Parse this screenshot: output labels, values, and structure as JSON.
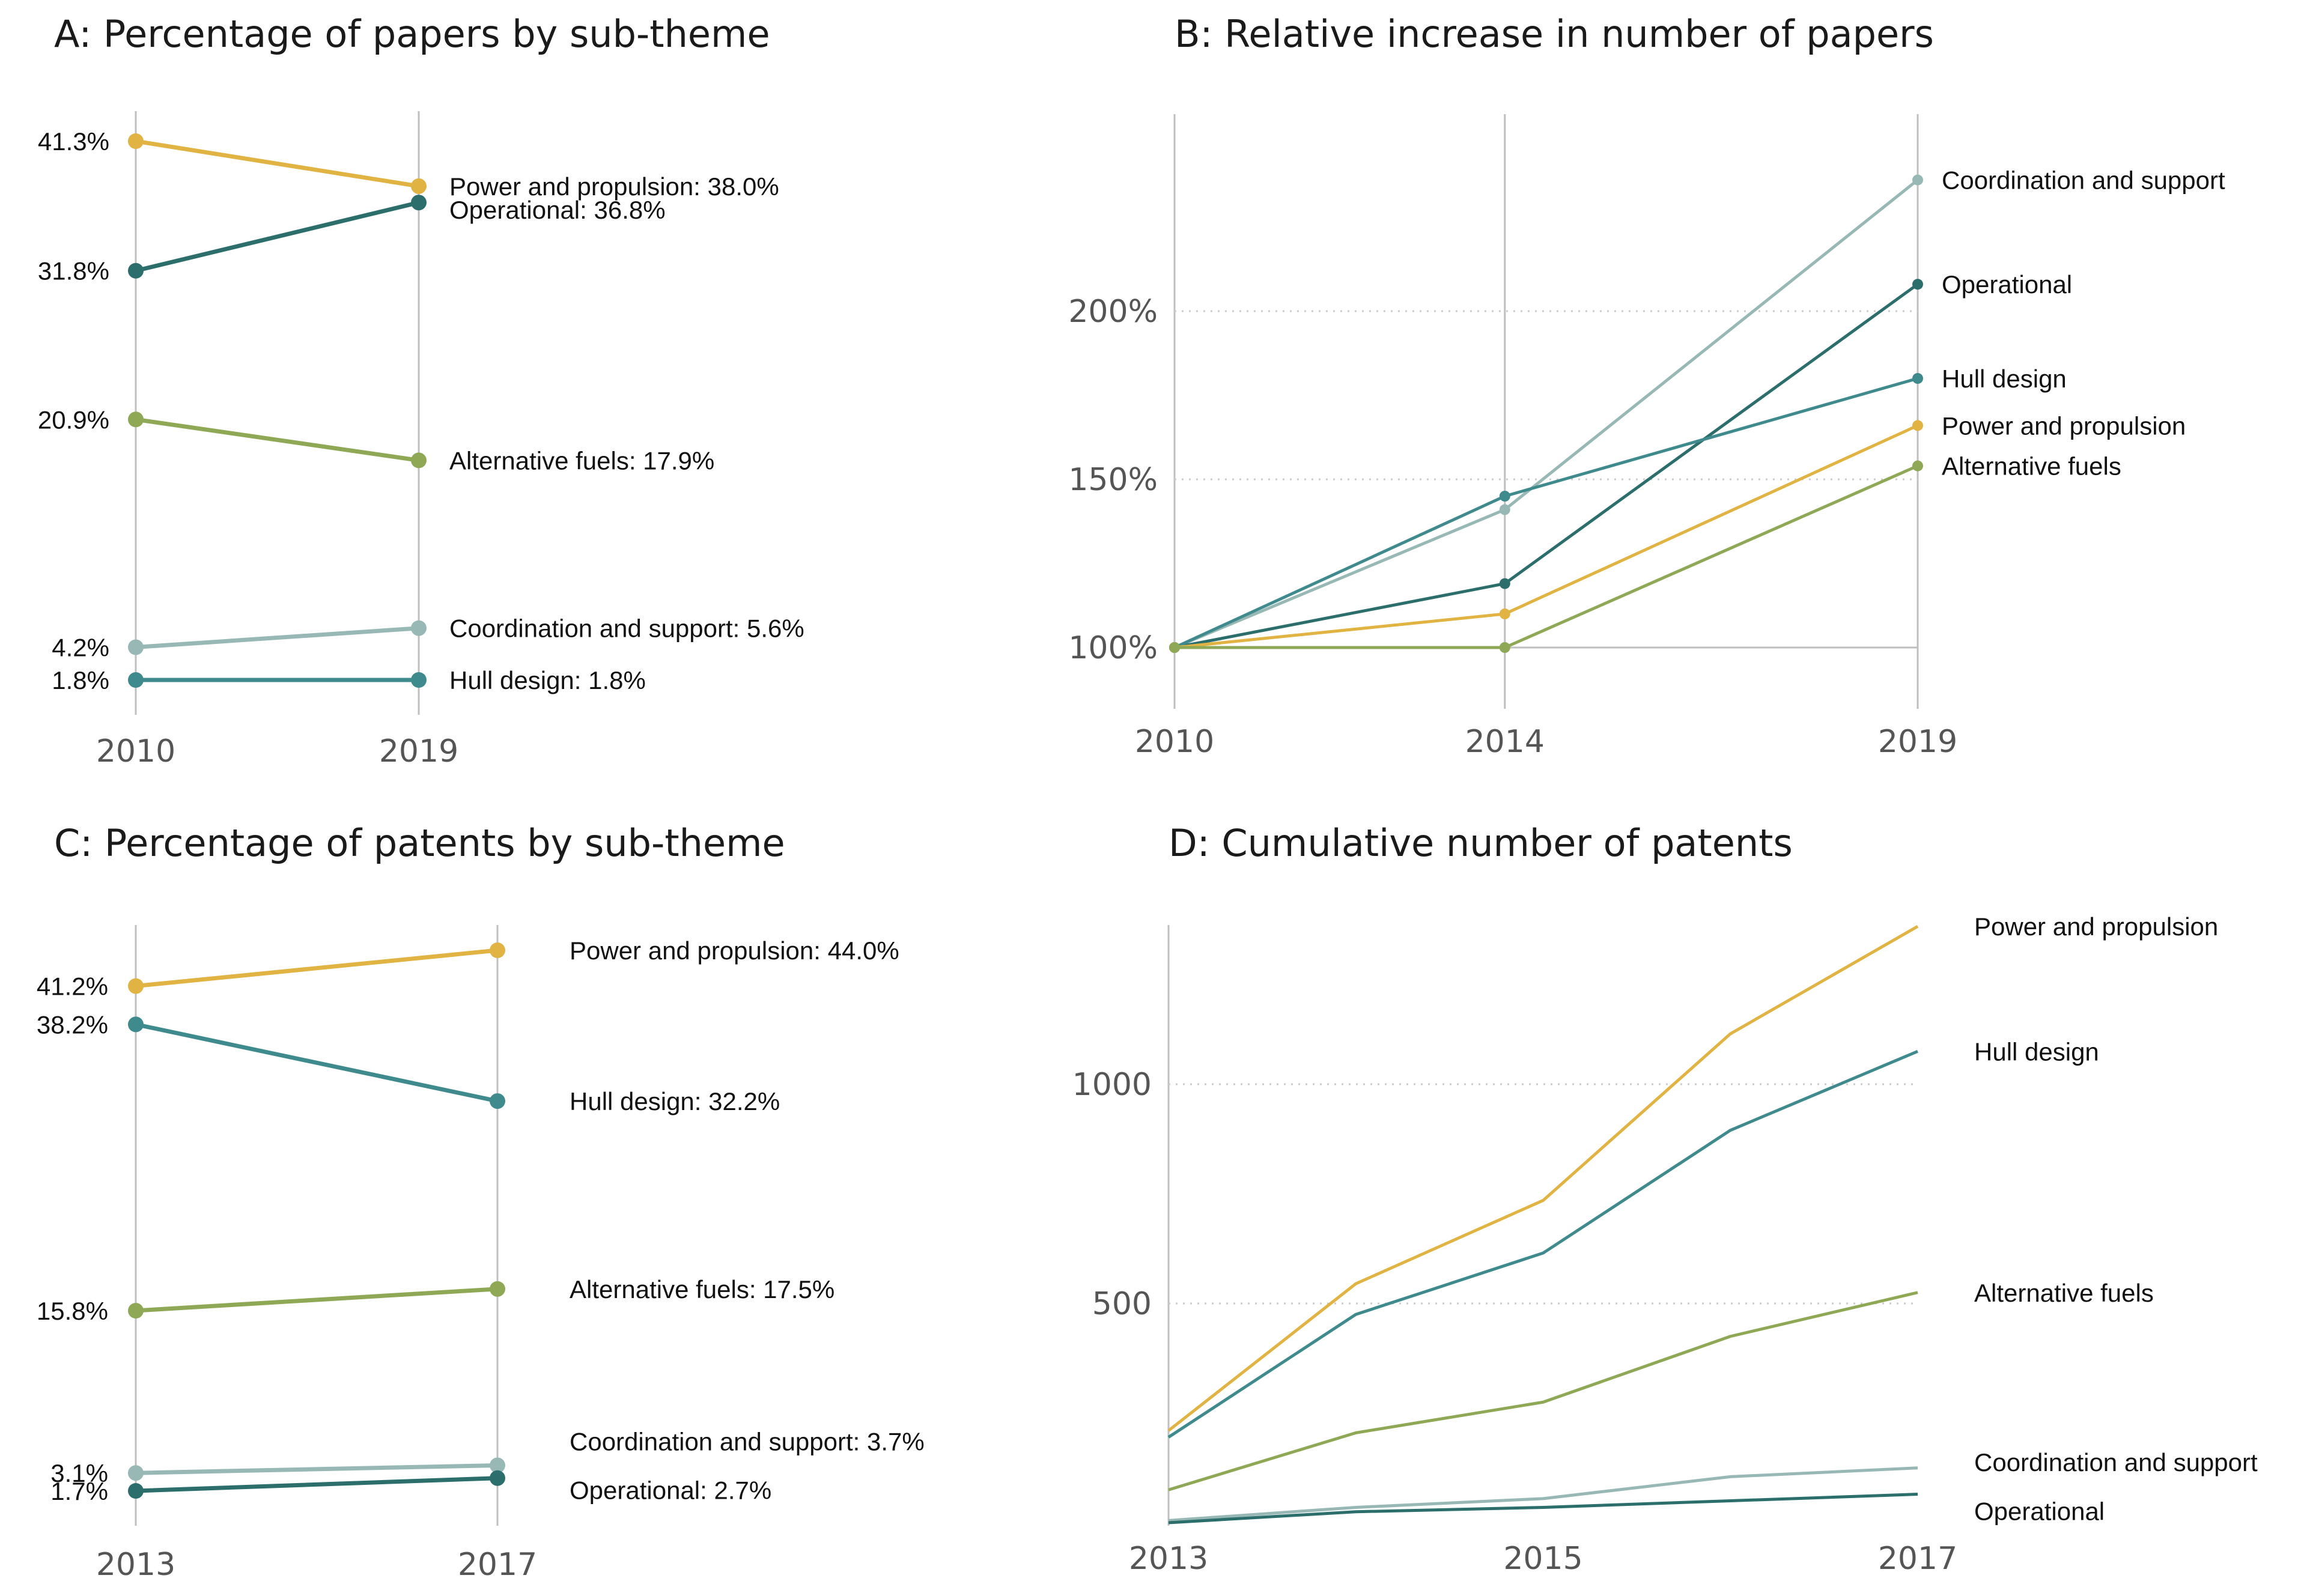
{
  "colors": {
    "power": "#E0B342",
    "operational": "#2B6E6C",
    "alternative": "#8FA855",
    "coordination": "#98B8B5",
    "hull": "#3F8A8C",
    "axis": "#BFBFBF",
    "grid": "#CCCCCC"
  },
  "chart_data": [
    {
      "id": "A",
      "type": "line",
      "title": "A: Percentage of papers by sub-theme",
      "x": [
        "2010",
        "2019"
      ],
      "ylim": [
        1.8,
        41.3
      ],
      "series": [
        {
          "key": "power",
          "start": 41.3,
          "end": 38.0,
          "start_label": "41.3%",
          "end_label": "Power and propulsion: 38.0%"
        },
        {
          "key": "operational",
          "start": 31.8,
          "end": 36.8,
          "start_label": "31.8%",
          "end_label": "Operational: 36.8%"
        },
        {
          "key": "alternative",
          "start": 20.9,
          "end": 17.9,
          "start_label": "20.9%",
          "end_label": "Alternative fuels: 17.9%"
        },
        {
          "key": "coordination",
          "start": 4.2,
          "end": 5.6,
          "start_label": "4.2%",
          "end_label": "Coordination and support: 5.6%"
        },
        {
          "key": "hull",
          "start": 1.8,
          "end": 1.8,
          "start_label": "1.8%",
          "end_label": "Hull design: 1.8%"
        }
      ]
    },
    {
      "id": "B",
      "type": "line",
      "title": "B: Relative increase in number of papers",
      "x": [
        2010,
        2014,
        2019
      ],
      "x_ticks": [
        "2010",
        "2014",
        "2019"
      ],
      "y_ticks": [
        100,
        150,
        200
      ],
      "y_tick_labels": [
        "100%",
        "150%",
        "200%"
      ],
      "ylim": [
        82,
        262
      ],
      "series": [
        {
          "key": "coordination",
          "name": "Coordination and support",
          "values": [
            100,
            141,
            239
          ]
        },
        {
          "key": "operational",
          "name": "Operational",
          "values": [
            100,
            119,
            208
          ]
        },
        {
          "key": "hull",
          "name": "Hull design",
          "values": [
            100,
            145,
            180
          ]
        },
        {
          "key": "power",
          "name": "Power and propulsion",
          "values": [
            100,
            110,
            166
          ]
        },
        {
          "key": "alternative",
          "name": "Alternative fuels",
          "values": [
            100,
            100,
            154
          ]
        }
      ]
    },
    {
      "id": "C",
      "type": "line",
      "title": "C: Percentage of patents by sub-theme",
      "x": [
        "2013",
        "2017"
      ],
      "ylim": [
        1.7,
        44.0
      ],
      "series": [
        {
          "key": "power",
          "start": 41.2,
          "end": 44.0,
          "start_label": "41.2%",
          "end_label": "Power and propulsion: 44.0%"
        },
        {
          "key": "hull",
          "start": 38.2,
          "end": 32.2,
          "start_label": "38.2%",
          "end_label": "Hull design: 32.2%"
        },
        {
          "key": "alternative",
          "start": 15.8,
          "end": 17.5,
          "start_label": "15.8%",
          "end_label": "Alternative fuels: 17.5%"
        },
        {
          "key": "coordination",
          "start": 3.1,
          "end": 3.7,
          "start_label": "3.1%",
          "end_label": "Coordination and support: 3.7%"
        },
        {
          "key": "operational",
          "start": 1.7,
          "end": 2.7,
          "start_label": "1.7%",
          "end_label": "Operational: 2.7%"
        }
      ]
    },
    {
      "id": "D",
      "type": "line",
      "title": "D: Cumulative number of patents",
      "x": [
        2013,
        2014,
        2015,
        2016,
        2017
      ],
      "x_ticks": [
        "2013",
        "2015",
        "2017"
      ],
      "y_ticks": [
        500,
        1000
      ],
      "y_tick_labels": [
        "500",
        "1000"
      ],
      "ylim": [
        0,
        1360
      ],
      "series": [
        {
          "key": "power",
          "name": "Power and propulsion",
          "values": [
            210,
            545,
            735,
            1115,
            1360
          ]
        },
        {
          "key": "hull",
          "name": "Hull design",
          "values": [
            195,
            475,
            615,
            895,
            1075
          ]
        },
        {
          "key": "alternative",
          "name": "Alternative fuels",
          "values": [
            75,
            205,
            275,
            425,
            525
          ]
        },
        {
          "key": "coordination",
          "name": "Coordination and support",
          "values": [
            5,
            35,
            55,
            105,
            125
          ]
        },
        {
          "key": "operational",
          "name": "Operational",
          "values": [
            0,
            25,
            35,
            50,
            65
          ]
        }
      ]
    }
  ]
}
